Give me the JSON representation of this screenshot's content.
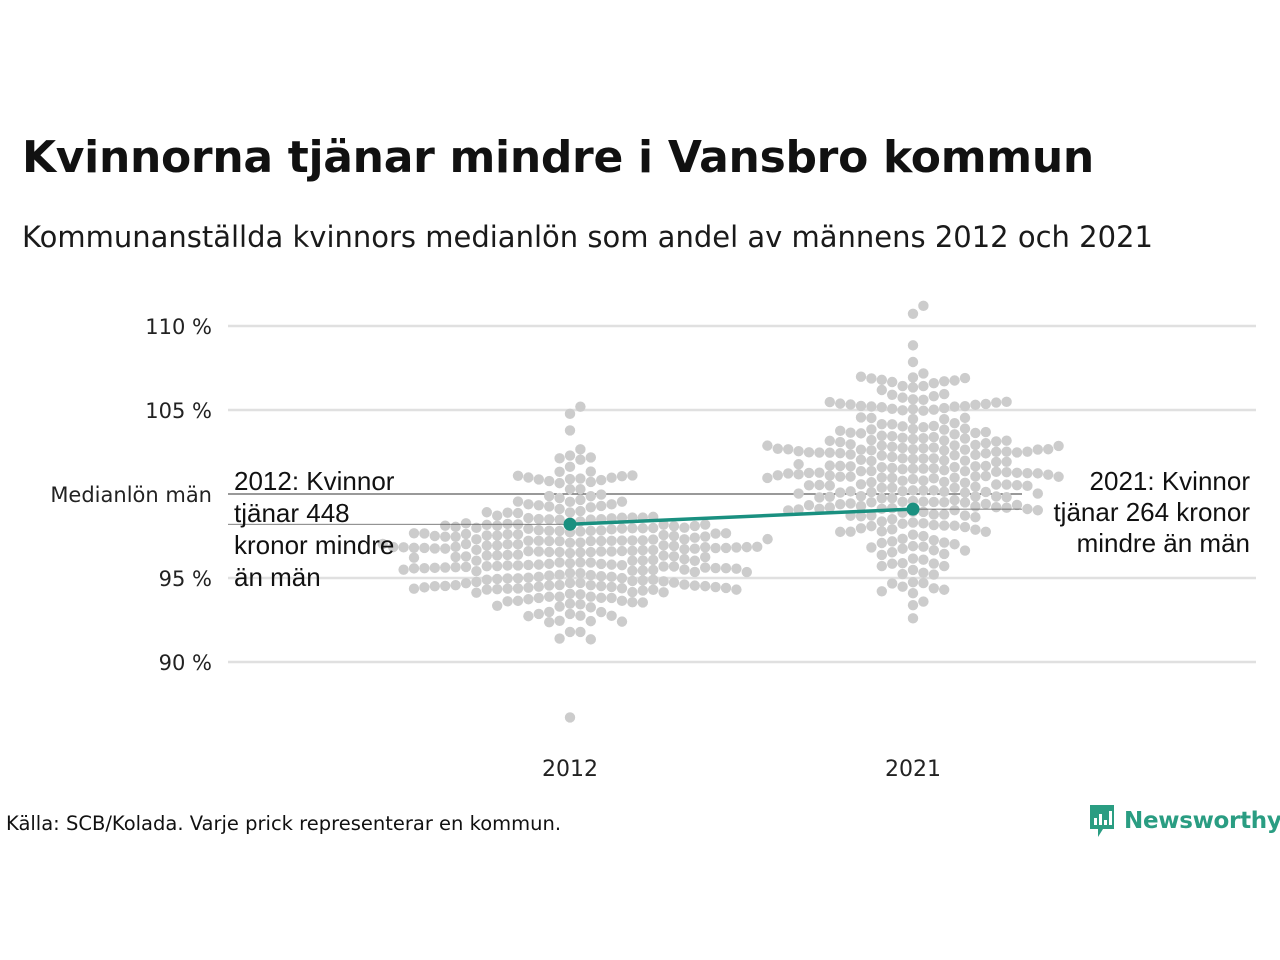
{
  "title": "Kvinnorna tjänar mindre i Vansbro kommun",
  "subtitle": "Kommunanställda kvinnors medianlön som andel av männens 2012 och 2021",
  "source": "Källa: SCB/Kolada. Varje prick representerar en kommun.",
  "brand": "Newsworthy",
  "colors": {
    "highlight": "#1a9080",
    "dots": "#cccccc",
    "grid": "#e0e0e0",
    "brand": "#2a9d82"
  },
  "chart_data": {
    "type": "scatter",
    "title": "Kvinnorna tjänar mindre i Vansbro kommun",
    "subtitle": "Kommunanställda kvinnors medianlön som andel av männens 2012 och 2021",
    "categories": [
      "2012",
      "2021"
    ],
    "ylim": [
      86,
      111.5
    ],
    "yticks": [
      90,
      95,
      105,
      110
    ],
    "ytick_labels": [
      "90 %",
      "95 %",
      "105 %",
      "110 %"
    ],
    "reference": {
      "value": 100,
      "label": "Medianlön män"
    },
    "series": [
      {
        "name": "Vansbro",
        "values": [
          98.2,
          99.1
        ]
      }
    ],
    "distributions": [
      {
        "category": "2012",
        "min": 86.7,
        "max": 105.2,
        "center": 96.5,
        "spread": 2.5,
        "count": 290
      },
      {
        "category": "2021",
        "min": 92.6,
        "max": 111.2,
        "center": 101.5,
        "spread": 3.0,
        "count": 290
      }
    ],
    "annotations": [
      {
        "category": "2012",
        "lines": [
          "2012: Kvinnor",
          "tjänar 448",
          "kronor mindre",
          "än män"
        ]
      },
      {
        "category": "2021",
        "lines": [
          "2021: Kvinnor",
          "tjänar 264 kronor",
          "mindre än män"
        ]
      }
    ],
    "grid": true,
    "legend": "none"
  }
}
